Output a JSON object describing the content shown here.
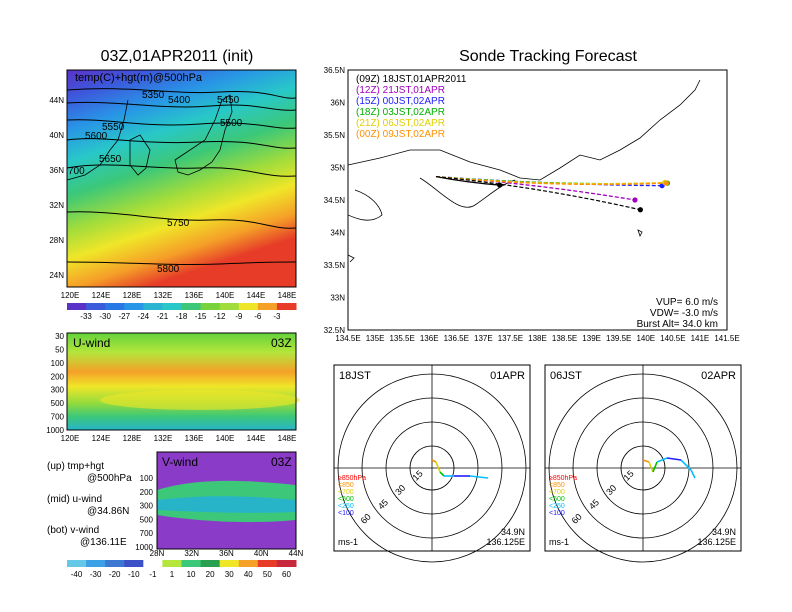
{
  "colors": {
    "bg": "#ffffff",
    "axis": "#000000"
  },
  "map_panel": {
    "title": "03Z,01APR2011 (init)",
    "field_label": "temp(C)+hgt(m)@500hPa",
    "x_ticks": [
      "120E",
      "124E",
      "128E",
      "132E",
      "136E",
      "140E",
      "144E",
      "148E"
    ],
    "y_ticks": [
      "44N",
      "40N",
      "36N",
      "32N",
      "28N",
      "24N"
    ],
    "contours": [
      {
        "label": "5350",
        "color": "#000"
      },
      {
        "label": "5400",
        "color": "#000"
      },
      {
        "label": "5450",
        "color": "#000"
      },
      {
        "label": "5500",
        "color": "#000"
      },
      {
        "label": "5550",
        "color": "#000"
      },
      {
        "label": "5600",
        "color": "#000"
      },
      {
        "label": "5650",
        "color": "#000"
      },
      {
        "label": "700",
        "color": "#000"
      },
      {
        "label": "5750",
        "color": "#000"
      },
      {
        "label": "5800",
        "color": "#000"
      }
    ],
    "colorbar_ticks": [
      "-33",
      "-30",
      "-27",
      "-24",
      "-21",
      "-18",
      "-15",
      "-12",
      "-9",
      "-6",
      "-3"
    ]
  },
  "uwind_panel": {
    "label": "U-wind",
    "time": "03Z",
    "y_ticks": [
      "30",
      "50",
      "100",
      "200",
      "300",
      "500",
      "700",
      "1000"
    ],
    "x_ticks": [
      "120E",
      "124E",
      "128E",
      "132E",
      "136E",
      "140E",
      "144E",
      "148E"
    ]
  },
  "vwind_panel": {
    "label": "V-wind",
    "time": "03Z",
    "y_ticks": [
      "100",
      "200",
      "300",
      "500",
      "700",
      "1000"
    ],
    "x_ticks": [
      "28N",
      "32N",
      "36N",
      "40N",
      "44N"
    ],
    "colorbar_ticks": [
      "-40",
      "-30",
      "-20",
      "-10",
      "-1",
      "1",
      "10",
      "20",
      "30",
      "40",
      "50",
      "60"
    ]
  },
  "legend_notes": [
    {
      "line1": "(up) tmp+hgt",
      "line2": "@500hPa"
    },
    {
      "line1": "(mid) u-wind",
      "line2": "@34.86N"
    },
    {
      "line1": "(bot) v-wind",
      "line2": "@136.11E"
    }
  ],
  "chart_data": [
    {
      "type": "line",
      "title": "Sonde Tracking Forecast",
      "x_ticks": [
        "134.5E",
        "135E",
        "135.5E",
        "136E",
        "136.5E",
        "137E",
        "137.5E",
        "138E",
        "138.5E",
        "139E",
        "139.5E",
        "140E",
        "140.5E",
        "141E",
        "141.5E"
      ],
      "y_ticks": [
        "36.5N",
        "36N",
        "35.5N",
        "35N",
        "34.5N",
        "34N",
        "33.5N",
        "33N",
        "32.5N"
      ],
      "xlim": [
        134.5,
        141.5
      ],
      "ylim": [
        32.5,
        36.5
      ],
      "launch": {
        "lon": 136.125,
        "lat": 34.86
      },
      "series": [
        {
          "name": "(09Z)  18JST,01APR2011",
          "color": "#000000",
          "end": {
            "lon": 137.3,
            "lat": 34.73
          }
        },
        {
          "name": "(12Z)  21JST,01APR",
          "color": "#a000c0",
          "end": {
            "lon": 139.8,
            "lat": 34.5
          }
        },
        {
          "name": "(15Z)  00JST,02APR",
          "color": "#2020ff",
          "end": {
            "lon": 140.3,
            "lat": 34.72
          }
        },
        {
          "name": "(18Z)  03JST,02APR",
          "color": "#00b000",
          "end": {
            "lon": 140.4,
            "lat": 34.76
          }
        },
        {
          "name": "(21Z)  06JST,02APR",
          "color": "#e0d000",
          "end": {
            "lon": 140.35,
            "lat": 34.77
          }
        },
        {
          "name": "(00Z)  09JST,02APR",
          "color": "#ff9000",
          "end": {
            "lon": 140.38,
            "lat": 34.76
          }
        }
      ],
      "series_late": {
        "name": "(21Z)  06JST,02APR",
        "end": {
          "lon": 139.9,
          "lat": 34.35
        }
      },
      "annotations": [
        "VUP=  6.0  m/s",
        "VDW=  -3.0  m/s",
        "Burst Alt=  34.0  km"
      ]
    },
    {
      "type": "scatter",
      "panel": "hodograph-left",
      "time_label": "18JST",
      "date_label": "01APR",
      "ring_labels": [
        "15",
        "30",
        "45",
        "60"
      ],
      "legend": [
        "≥850hPa",
        "<850",
        "<700",
        "<500",
        "<250",
        "<100"
      ],
      "legend_colors": [
        "#ff0000",
        "#ff9000",
        "#e0d000",
        "#00c000",
        "#00c0ff",
        "#2020ff"
      ],
      "units": "ms-1",
      "lat_label": "34.9N",
      "lon_label": "136.125E"
    },
    {
      "type": "scatter",
      "panel": "hodograph-right",
      "time_label": "06JST",
      "date_label": "02APR",
      "ring_labels": [
        "15",
        "30",
        "45",
        "60"
      ],
      "legend": [
        "≥850hPa",
        "<850",
        "<700",
        "<500",
        "<250",
        "<100"
      ],
      "legend_colors": [
        "#ff0000",
        "#ff9000",
        "#e0d000",
        "#00c000",
        "#00c0ff",
        "#2020ff"
      ],
      "units": "ms-1",
      "lat_label": "34.9N",
      "lon_label": "136.125E"
    }
  ]
}
